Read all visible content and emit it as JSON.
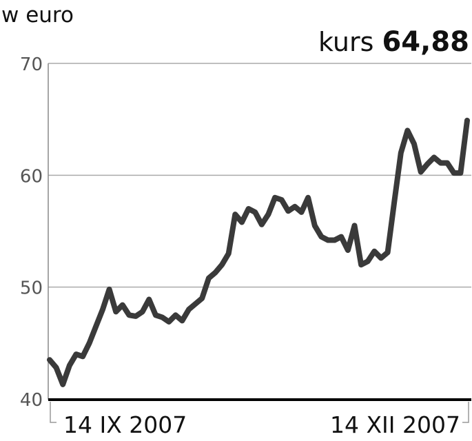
{
  "chart_data": {
    "type": "line",
    "unit_label": "w euro",
    "kurs_label": "kurs",
    "kurs_value": "64,88",
    "ylim": [
      40,
      70
    ],
    "yticks": [
      40,
      50,
      60,
      70
    ],
    "ytick_labels": [
      "40",
      "50",
      "60",
      "70"
    ],
    "xtick_labels": [
      "14 IX 2007",
      "14 XII 2007"
    ],
    "grid": "horizontal",
    "colors": {
      "line": "#3a3a3a",
      "grid": "#aaaaaa",
      "axis": "#000000"
    },
    "values": [
      43.5,
      42.8,
      41.3,
      43.0,
      44.0,
      43.8,
      45.0,
      46.5,
      48.0,
      49.8,
      47.8,
      48.4,
      47.5,
      47.4,
      47.8,
      48.9,
      47.5,
      47.3,
      46.9,
      47.5,
      47.0,
      48.0,
      48.5,
      49.0,
      50.8,
      51.3,
      52.0,
      53.0,
      56.5,
      55.8,
      57.0,
      56.7,
      55.6,
      56.5,
      58.0,
      57.8,
      56.8,
      57.2,
      56.7,
      58.0,
      55.5,
      54.5,
      54.2,
      54.2,
      54.5,
      53.3,
      55.5,
      52.0,
      52.3,
      53.2,
      52.6,
      53.1,
      57.6,
      62.0,
      64.0,
      62.8,
      60.3,
      61.0,
      61.6,
      61.1,
      61.1,
      60.2,
      60.2,
      64.9
    ]
  }
}
